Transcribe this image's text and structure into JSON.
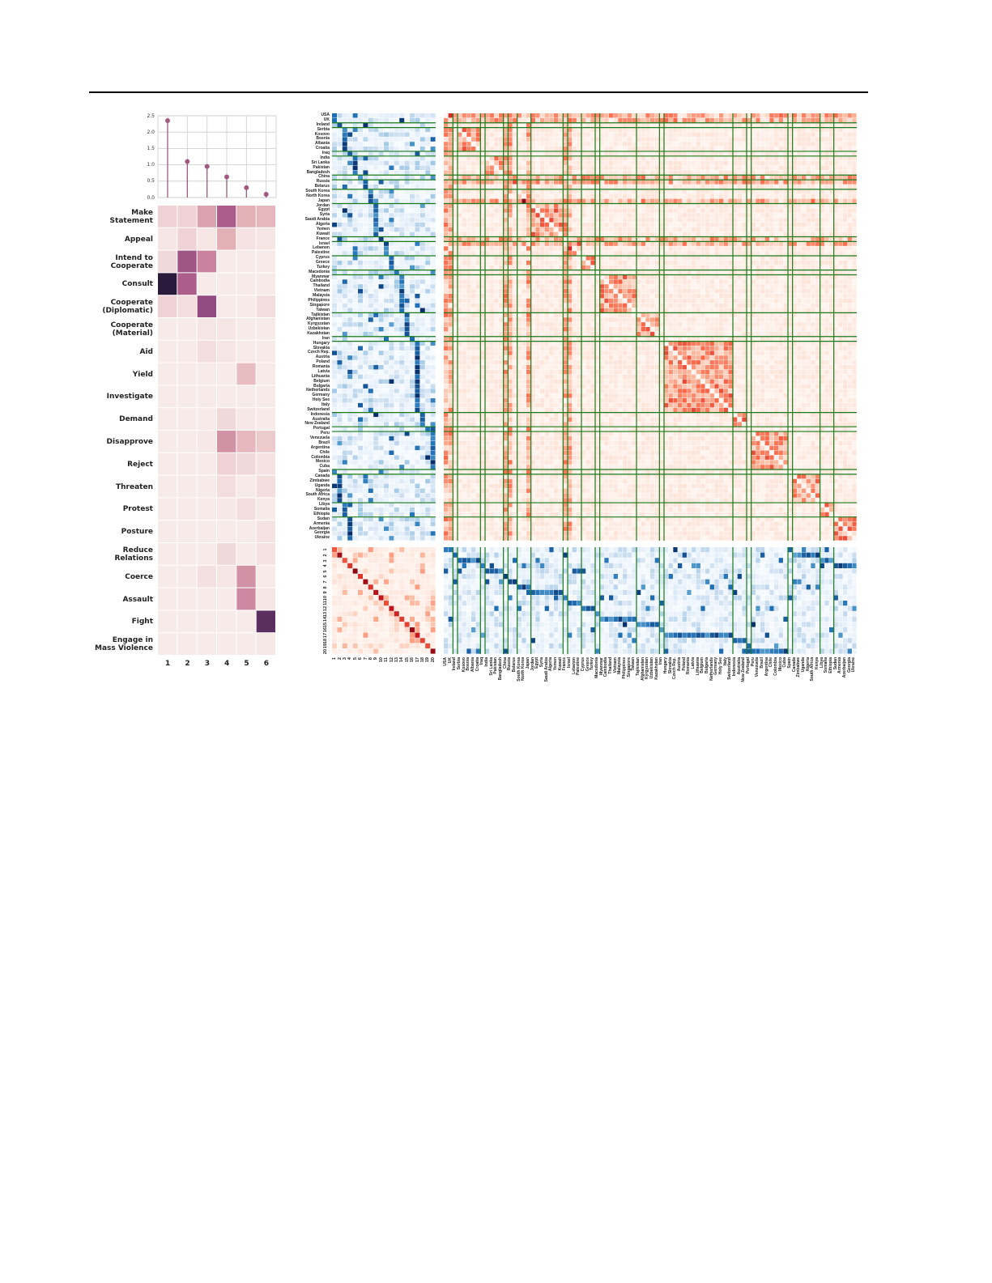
{
  "chart_data": [
    {
      "type": "line",
      "subtype": "stem",
      "x": [
        1,
        2,
        3,
        4,
        5,
        6
      ],
      "values": [
        2.35,
        1.1,
        0.95,
        0.63,
        0.3,
        0.1
      ],
      "ylim": [
        0,
        2.5
      ],
      "yticks": [
        "0.0",
        "0.5",
        "1.0",
        "1.5",
        "2.0",
        "2.5"
      ],
      "grid": true,
      "color": "#a05a82"
    },
    {
      "type": "heatmap",
      "rows": [
        "Make\nStatement",
        "Appeal",
        "Intend to\nCooperate",
        "Consult",
        "Cooperate\n(Diplomatic)",
        "Cooperate\n(Material)",
        "Aid",
        "Yield",
        "Investigate",
        "Demand",
        "Disapprove",
        "Reject",
        "Threaten",
        "Protest",
        "Posture",
        "Reduce\nRelations",
        "Coerce",
        "Assault",
        "Fight",
        "Engage in\nMass Violence"
      ],
      "columns": [
        "1",
        "2",
        "3",
        "4",
        "5",
        "6"
      ],
      "values": [
        [
          0.12,
          0.12,
          0.3,
          0.55,
          0.25,
          0.22
        ],
        [
          0.05,
          0.12,
          0.05,
          0.25,
          0.06,
          0.05
        ],
        [
          0.1,
          0.6,
          0.4,
          0.03,
          0.03,
          0.03
        ],
        [
          1.0,
          0.55,
          0.03,
          0.03,
          0.03,
          0.03
        ],
        [
          0.12,
          0.08,
          0.65,
          0.03,
          0.03,
          0.08
        ],
        [
          0.03,
          0.03,
          0.05,
          0.05,
          0.03,
          0.03
        ],
        [
          0.03,
          0.03,
          0.08,
          0.05,
          0.03,
          0.03
        ],
        [
          0.03,
          0.03,
          0.03,
          0.03,
          0.2,
          0.03
        ],
        [
          0.03,
          0.03,
          0.03,
          0.03,
          0.03,
          0.03
        ],
        [
          0.03,
          0.03,
          0.03,
          0.1,
          0.04,
          0.03
        ],
        [
          0.03,
          0.03,
          0.04,
          0.35,
          0.22,
          0.15
        ],
        [
          0.03,
          0.03,
          0.03,
          0.12,
          0.1,
          0.06
        ],
        [
          0.03,
          0.03,
          0.03,
          0.08,
          0.03,
          0.08
        ],
        [
          0.03,
          0.03,
          0.03,
          0.04,
          0.08,
          0.03
        ],
        [
          0.03,
          0.03,
          0.03,
          0.03,
          0.03,
          0.06
        ],
        [
          0.03,
          0.03,
          0.03,
          0.1,
          0.03,
          0.06
        ],
        [
          0.03,
          0.03,
          0.07,
          0.05,
          0.35,
          0.03
        ],
        [
          0.03,
          0.03,
          0.03,
          0.03,
          0.38,
          0.05
        ],
        [
          0.03,
          0.03,
          0.03,
          0.03,
          0.03,
          0.85
        ],
        [
          0.03,
          0.03,
          0.03,
          0.03,
          0.03,
          0.04
        ]
      ],
      "colormap": [
        "#faf3f0",
        "#e3b0b6",
        "#b8658f",
        "#7a3c78",
        "#2a1b3d"
      ]
    },
    {
      "type": "heatmap",
      "description_of_layout": "country x country (red) with country x topic (blue) margins",
      "countries": [
        "USA",
        "UK",
        "Ireland",
        "Serbia",
        "Kosovo",
        "Bosnia",
        "Albania",
        "Croatia",
        "Iraq",
        "India",
        "Sri Lanka",
        "Pakistan",
        "Bangladesh",
        "China",
        "Russia",
        "Belarus",
        "South Korea",
        "North Korea",
        "Japan",
        "Jordan",
        "Egypt",
        "Syria",
        "Saudi Arabia",
        "Algeria",
        "Yemen",
        "Kuwait",
        "France",
        "Israel",
        "Lebanon",
        "Palestine",
        "Cyprus",
        "Greece",
        "Turkey",
        "Macedonia",
        "Myanmar",
        "Cambodia",
        "Thailand",
        "Vietnam",
        "Malaysia",
        "Philippines",
        "Singapore",
        "Taiwan",
        "Tajikistan",
        "Afghanistan",
        "Kyrgyzstan",
        "Uzbekistan",
        "Kazakhstan",
        "Iran",
        "Hungary",
        "Slovakia",
        "Czech Rep.",
        "Austria",
        "Poland",
        "Romania",
        "Latvia",
        "Lithuania",
        "Belgium",
        "Bulgaria",
        "Netherlands",
        "Germany",
        "Holy See",
        "Italy",
        "Switzerland",
        "Indonesia",
        "Australia",
        "New Zealand",
        "Portugal",
        "Peru",
        "Venezuela",
        "Brazil",
        "Argentina",
        "Chile",
        "Colombia",
        "Mexico",
        "Cuba",
        "Spain",
        "Canada",
        "Zimbabwe",
        "Uganda",
        "Nigeria",
        "South Africa",
        "Kenya",
        "Libya",
        "Somalia",
        "Ethiopia",
        "Sudan",
        "Armenia",
        "Azerbaijan",
        "Georgia",
        "Ukraine"
      ],
      "group_sizes": [
        2,
        1,
        5,
        1,
        4,
        1,
        2,
        3,
        7,
        1,
        3,
        3,
        1,
        8,
        5,
        1,
        15,
        3,
        1,
        8,
        1,
        6,
        3,
        5
      ],
      "topics": [
        "1",
        "2",
        "3",
        "4",
        "5",
        "6",
        "7",
        "8",
        "9",
        "10",
        "11",
        "12",
        "13",
        "14",
        "15",
        "16",
        "17",
        "18",
        "19",
        "20"
      ],
      "country_colormap": [
        "#fff5f0",
        "#fcbba1",
        "#fb6a4a",
        "#cb181d",
        "#67000d"
      ],
      "topic_colormap": [
        "#f7fbff",
        "#c6dbef",
        "#6baed6",
        "#2171b5",
        "#08306b"
      ],
      "group_line_color": "#1a7a1a"
    }
  ]
}
